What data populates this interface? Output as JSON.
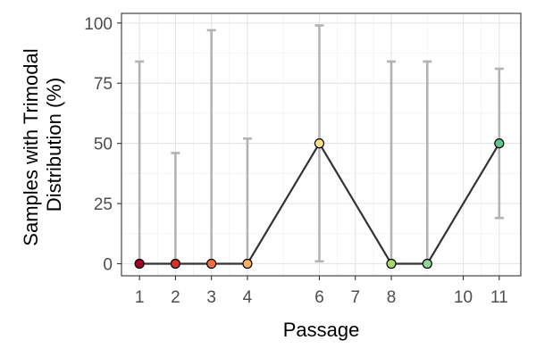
{
  "chart_data": {
    "type": "line",
    "xlabel": "Passage",
    "ylabel_lines": [
      "Samples with Trimodal",
      "Distribution (%)"
    ],
    "x_ticks": [
      1,
      2,
      3,
      4,
      6,
      7,
      8,
      10,
      11
    ],
    "x_tick_labels": [
      "1",
      "2",
      "3",
      "4",
      "6",
      "7",
      "8",
      "10",
      "11"
    ],
    "y_ticks": [
      0,
      25,
      50,
      75,
      100
    ],
    "y_tick_labels": [
      "0",
      "25",
      "50",
      "75",
      "100"
    ],
    "xlim": [
      0.5,
      11.6
    ],
    "ylim": [
      -5,
      104
    ],
    "grid": true,
    "points": [
      {
        "x": 1,
        "y": 0,
        "lower": 0,
        "upper": 84,
        "color": "#a50026"
      },
      {
        "x": 2,
        "y": 0,
        "lower": 0,
        "upper": 46,
        "color": "#d73027"
      },
      {
        "x": 3,
        "y": 0,
        "lower": 0,
        "upper": 97,
        "color": "#f46d43"
      },
      {
        "x": 4,
        "y": 0,
        "lower": 0,
        "upper": 52,
        "color": "#fdae61"
      },
      {
        "x": 6,
        "y": 50,
        "lower": 1,
        "upper": 99,
        "color": "#fee08b"
      },
      {
        "x": 8,
        "y": 0,
        "lower": 0,
        "upper": 84,
        "color": "#a6d96a"
      },
      {
        "x": 9,
        "y": 0,
        "lower": 0,
        "upper": 84,
        "color": "#91d39b"
      },
      {
        "x": 11,
        "y": 50,
        "lower": 19,
        "upper": 81,
        "color": "#5ec391"
      }
    ],
    "line_color": "#333333",
    "errorbar_color": "#b3b3b3",
    "grid_major_color": "#e6e6e6",
    "grid_minor_color": "#f2f2f2"
  }
}
